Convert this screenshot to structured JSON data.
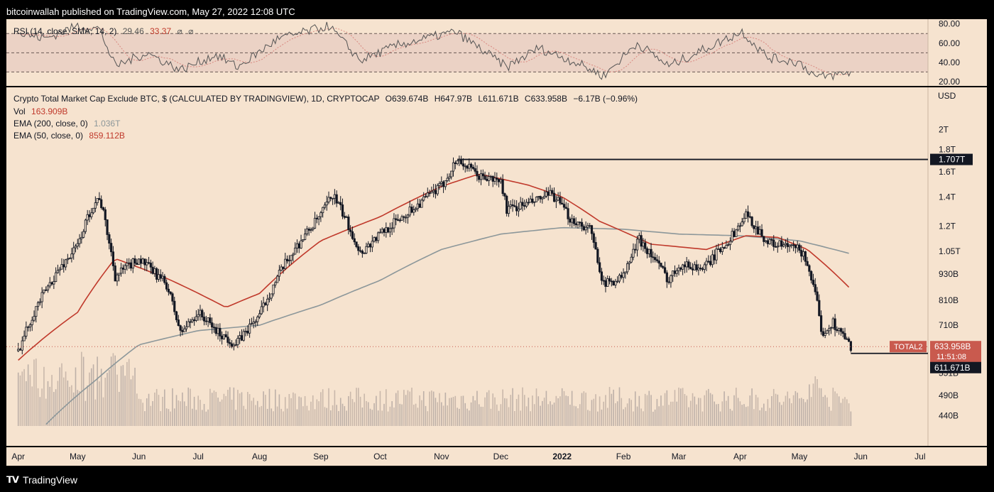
{
  "header": {
    "publisher": "bitcoinwallah published on TradingView.com, May 27, 2022 12:08 UTC"
  },
  "footer": {
    "brand": "TradingView",
    "logo": "tradingview-logo-icon"
  },
  "rsi_panel": {
    "label": "RSI (14, close, SMA, 14, 2)",
    "value_1": "29.46",
    "value_2": "33.37",
    "scale_labels": [
      "80.00",
      "60.00",
      "40.00",
      "20.00"
    ]
  },
  "main_panel": {
    "title": "Crypto Total Market Cap Exclude BTC, $ (CALCULATED BY TRADINGVIEW), 1D, CRYPTOCAP",
    "ohlc": {
      "o": "O639.674B",
      "h": "H647.97B",
      "l": "L611.671B",
      "c": "C633.958B",
      "change": "−6.17B (−0.96%)"
    },
    "vol_label": "Vol",
    "vol_value": "163.909B",
    "ema200_label": "EMA (200, close, 0)",
    "ema200_value": "1.036T",
    "ema50_label": "EMA (50, close, 0)",
    "ema50_value": "859.112B",
    "currency": "USD"
  },
  "badges": {
    "resistance": "1.707T",
    "symbol": "TOTAL2",
    "price": "633.958B",
    "countdown": "11:51:08",
    "support": "611.671B"
  },
  "colors": {
    "background": "#f6e3cf",
    "candle": "#131722",
    "ema50": "#c0392b",
    "ema200": "#8c979a",
    "volume": "#b0b0b0",
    "rsi_band": "#e2c4bd",
    "badge_red": "#c95a4e"
  },
  "chart_data": {
    "type": "line",
    "log_scale": true,
    "grid": false,
    "y_ticks": [
      "2T",
      "1.8T",
      "1.6T",
      "1.4T",
      "1.2T",
      "1.05T",
      "930B",
      "810B",
      "710B",
      "590B",
      "551B",
      "490B",
      "440B"
    ],
    "y_tick_values": [
      2000,
      1800,
      1600,
      1400,
      1200,
      1050,
      930,
      810,
      710,
      590,
      551,
      490,
      440
    ],
    "x_ticks": [
      "Apr",
      "May",
      "Jun",
      "Jul",
      "Aug",
      "Sep",
      "Oct",
      "Nov",
      "Dec",
      "2022",
      "Feb",
      "Mar",
      "Apr",
      "May",
      "Jun",
      "Jul"
    ],
    "x_tick_dates": [
      "2021-04-01",
      "2021-05-01",
      "2021-06-01",
      "2021-07-01",
      "2021-08-01",
      "2021-09-01",
      "2021-10-01",
      "2021-11-01",
      "2021-12-01",
      "2022-01-01",
      "2022-02-01",
      "2022-03-01",
      "2022-04-01",
      "2022-05-01",
      "2022-06-01",
      "2022-07-01"
    ],
    "units": "USD billions",
    "price_series": {
      "x": [
        "2021-04-01",
        "2021-04-10",
        "2021-04-20",
        "2021-05-01",
        "2021-05-08",
        "2021-05-12",
        "2021-05-20",
        "2021-06-01",
        "2021-06-15",
        "2021-06-22",
        "2021-07-01",
        "2021-07-10",
        "2021-07-20",
        "2021-08-01",
        "2021-08-15",
        "2021-09-01",
        "2021-09-07",
        "2021-09-21",
        "2021-10-01",
        "2021-10-15",
        "2021-11-01",
        "2021-11-09",
        "2021-11-20",
        "2021-12-01",
        "2021-12-04",
        "2021-12-15",
        "2021-12-27",
        "2022-01-05",
        "2022-01-15",
        "2022-01-22",
        "2022-02-01",
        "2022-02-09",
        "2022-02-24",
        "2022-03-01",
        "2022-03-14",
        "2022-03-28",
        "2022-04-04",
        "2022-04-15",
        "2022-05-01",
        "2022-05-05",
        "2022-05-10",
        "2022-05-12",
        "2022-05-18",
        "2022-05-27"
      ],
      "values": [
        620,
        780,
        930,
        1080,
        1320,
        1400,
        920,
        1010,
        880,
        680,
        760,
        690,
        640,
        750,
        1000,
        1270,
        1420,
        1040,
        1150,
        1290,
        1480,
        1707,
        1560,
        1520,
        1310,
        1350,
        1420,
        1250,
        1180,
        880,
        920,
        1120,
        900,
        980,
        960,
        1140,
        1270,
        1100,
        1060,
        990,
        790,
        680,
        720,
        634
      ]
    },
    "ema50": {
      "x": [
        "2021-04-01",
        "2021-05-01",
        "2021-05-20",
        "2021-06-15",
        "2021-07-15",
        "2021-08-01",
        "2021-09-01",
        "2021-10-01",
        "2021-11-01",
        "2021-11-20",
        "2021-12-15",
        "2022-01-01",
        "2022-01-20",
        "2022-02-15",
        "2022-03-15",
        "2022-04-04",
        "2022-04-20",
        "2022-05-05",
        "2022-05-27"
      ],
      "values": [
        590,
        760,
        1010,
        910,
        780,
        840,
        1110,
        1260,
        1480,
        1580,
        1490,
        1400,
        1230,
        1090,
        1060,
        1140,
        1130,
        1060,
        859
      ]
    },
    "ema200": {
      "x": [
        "2021-04-15",
        "2021-05-10",
        "2021-06-01",
        "2021-07-01",
        "2021-08-01",
        "2021-09-01",
        "2021-10-01",
        "2021-11-01",
        "2021-12-01",
        "2022-01-01",
        "2022-02-01",
        "2022-03-01",
        "2022-04-01",
        "2022-05-01",
        "2022-05-27"
      ],
      "values": [
        420,
        530,
        640,
        690,
        710,
        790,
        900,
        1060,
        1150,
        1190,
        1180,
        1150,
        1140,
        1110,
        1036
      ]
    },
    "rsi_series": {
      "x": [
        "2021-04-01",
        "2021-04-15",
        "2021-05-01",
        "2021-05-12",
        "2021-05-20",
        "2021-06-05",
        "2021-06-22",
        "2021-07-10",
        "2021-07-21",
        "2021-08-10",
        "2021-09-05",
        "2021-09-21",
        "2021-10-10",
        "2021-11-08",
        "2021-11-25",
        "2021-12-04",
        "2021-12-20",
        "2022-01-08",
        "2022-01-22",
        "2022-02-08",
        "2022-02-24",
        "2022-03-10",
        "2022-04-02",
        "2022-04-15",
        "2022-05-01",
        "2022-05-10",
        "2022-05-27"
      ],
      "values": [
        70,
        65,
        78,
        75,
        36,
        50,
        32,
        48,
        35,
        64,
        78,
        42,
        58,
        72,
        48,
        35,
        55,
        40,
        26,
        60,
        36,
        50,
        72,
        45,
        40,
        24,
        29.46
      ]
    },
    "rsi_levels": [
      70,
      50,
      30
    ]
  }
}
